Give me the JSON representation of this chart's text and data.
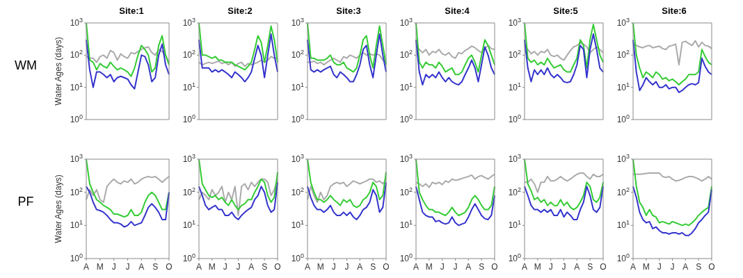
{
  "chart_data": [
    {
      "type": "line",
      "title": "Site:1",
      "ylabel": "Water Ages  (days)",
      "annotations": [
        "WM"
      ],
      "log": true,
      "tick_labels": "y",
      "ylim": [
        1,
        1000
      ],
      "categories": [
        null,
        null,
        null,
        null,
        null,
        null,
        null,
        null,
        null,
        null,
        null,
        null,
        null,
        null,
        null,
        null,
        null,
        null,
        null,
        null,
        null,
        null,
        null,
        null,
        null
      ],
      "yticks": [
        {
          "value": 1,
          "label": "10$^{0}$"
        },
        {
          "value": 10,
          "label": "10$^{1}$"
        },
        {
          "value": 100,
          "label": "10$^{2}$"
        },
        {
          "value": 1000,
          "label": "10$^{3}$"
        }
      ],
      "series": [
        {
          "color": "#aaaaaa",
          "values": [
            90,
            80,
            80,
            60,
            90,
            100,
            80,
            140,
            120,
            70,
            110,
            90,
            80,
            120,
            110,
            130,
            150,
            170,
            180,
            120,
            100,
            150,
            130,
            100,
            60
          ]
        },
        {
          "color": "#33cc33",
          "values": [
            1000,
            70,
            60,
            35,
            55,
            45,
            40,
            60,
            45,
            35,
            40,
            35,
            30,
            22,
            40,
            100,
            200,
            150,
            100,
            30,
            40,
            200,
            400,
            100,
            50
          ]
        },
        {
          "color": "#3333cc",
          "values": [
            300,
            35,
            10,
            30,
            30,
            25,
            20,
            25,
            15,
            20,
            22,
            20,
            18,
            12,
            9,
            30,
            100,
            90,
            50,
            15,
            20,
            100,
            220,
            50,
            25
          ]
        }
      ]
    },
    {
      "type": "line",
      "title": "Site:2",
      "log": true,
      "tick_labels": "y",
      "ylim": [
        1,
        1000
      ],
      "categories": [
        null,
        null,
        null,
        null,
        null,
        null,
        null,
        null,
        null,
        null,
        null,
        null,
        null,
        null,
        null,
        null,
        null,
        null,
        null,
        null,
        null,
        null,
        null,
        null,
        null
      ],
      "yticks": [
        {
          "value": 1,
          "label": "10$^{0}$"
        },
        {
          "value": 10,
          "label": "10$^{1}$"
        },
        {
          "value": 100,
          "label": "10$^{2}$"
        },
        {
          "value": 1000,
          "label": "10$^{3}$"
        }
      ],
      "series": [
        {
          "color": "#aaaaaa",
          "values": [
            60,
            50,
            55,
            60,
            55,
            60,
            65,
            55,
            60,
            50,
            60,
            45,
            55,
            60,
            45,
            55,
            50,
            55,
            60,
            70,
            60,
            70,
            90,
            80,
            80
          ]
        },
        {
          "color": "#33cc33",
          "values": [
            1000,
            100,
            100,
            90,
            80,
            90,
            70,
            70,
            60,
            60,
            60,
            50,
            45,
            40,
            35,
            45,
            60,
            150,
            400,
            250,
            60,
            200,
            800,
            300,
            60
          ]
        },
        {
          "color": "#3333cc",
          "values": [
            300,
            40,
            40,
            40,
            30,
            35,
            30,
            35,
            30,
            25,
            20,
            30,
            25,
            20,
            15,
            20,
            30,
            80,
            200,
            100,
            20,
            100,
            450,
            100,
            30
          ]
        }
      ]
    },
    {
      "type": "line",
      "title": "Site:3",
      "log": true,
      "tick_labels": "y",
      "ylim": [
        1,
        1000
      ],
      "categories": [
        null,
        null,
        null,
        null,
        null,
        null,
        null,
        null,
        null,
        null,
        null,
        null,
        null,
        null,
        null,
        null,
        null,
        null,
        null,
        null,
        null,
        null,
        null,
        null,
        null
      ],
      "yticks": [
        {
          "value": 1,
          "label": "10$^{0}$"
        },
        {
          "value": 10,
          "label": "10$^{1}$"
        },
        {
          "value": 100,
          "label": "10$^{2}$"
        },
        {
          "value": 1000,
          "label": "10$^{3}$"
        }
      ],
      "series": [
        {
          "color": "#aaaaaa",
          "values": [
            60,
            60,
            65,
            55,
            60,
            50,
            60,
            70,
            80,
            70,
            60,
            90,
            80,
            100,
            90,
            80,
            100,
            120,
            100,
            110,
            100,
            110,
            100,
            70,
            60
          ]
        },
        {
          "color": "#33cc33",
          "values": [
            1000,
            80,
            80,
            70,
            70,
            70,
            80,
            100,
            60,
            50,
            50,
            60,
            40,
            35,
            30,
            40,
            100,
            300,
            400,
            100,
            40,
            200,
            800,
            200,
            50
          ]
        },
        {
          "color": "#3333cc",
          "values": [
            300,
            35,
            30,
            35,
            30,
            35,
            40,
            45,
            25,
            20,
            30,
            25,
            20,
            15,
            15,
            25,
            50,
            150,
            200,
            50,
            20,
            100,
            450,
            100,
            30
          ]
        }
      ]
    },
    {
      "type": "line",
      "title": "Site:4",
      "log": true,
      "tick_labels": "y",
      "ylim": [
        1,
        1000
      ],
      "categories": [
        null,
        null,
        null,
        null,
        null,
        null,
        null,
        null,
        null,
        null,
        null,
        null,
        null,
        null,
        null,
        null,
        null,
        null,
        null,
        null,
        null,
        null,
        null,
        null,
        null
      ],
      "yticks": [
        {
          "value": 1,
          "label": "10$^{0}$"
        },
        {
          "value": 10,
          "label": "10$^{1}$"
        },
        {
          "value": 100,
          "label": "10$^{2}$"
        },
        {
          "value": 1000,
          "label": "10$^{3}$"
        }
      ],
      "series": [
        {
          "color": "#aaaaaa",
          "values": [
            200,
            150,
            120,
            150,
            100,
            130,
            120,
            150,
            110,
            100,
            120,
            90,
            80,
            120,
            110,
            140,
            160,
            190,
            170,
            140,
            120,
            160,
            200,
            160,
            150
          ]
        },
        {
          "color": "#33cc33",
          "values": [
            1000,
            60,
            40,
            60,
            50,
            50,
            40,
            60,
            45,
            30,
            35,
            40,
            25,
            25,
            30,
            50,
            80,
            100,
            60,
            30,
            100,
            300,
            200,
            100,
            50
          ]
        },
        {
          "color": "#3333cc",
          "values": [
            300,
            30,
            12,
            25,
            20,
            25,
            20,
            30,
            20,
            15,
            20,
            15,
            13,
            12,
            15,
            25,
            40,
            70,
            40,
            15,
            50,
            180,
            100,
            40,
            25
          ]
        }
      ]
    },
    {
      "type": "line",
      "title": "Site:5",
      "log": true,
      "tick_labels": "y",
      "ylim": [
        1,
        1000
      ],
      "categories": [
        null,
        null,
        null,
        null,
        null,
        null,
        null,
        null,
        null,
        null,
        null,
        null,
        null,
        null,
        null,
        null,
        null,
        null,
        null,
        null,
        null,
        null,
        null,
        null,
        null
      ],
      "yticks": [
        {
          "value": 1,
          "label": "10$^{0}$"
        },
        {
          "value": 10,
          "label": "10$^{1}$"
        },
        {
          "value": 100,
          "label": "10$^{2}$"
        },
        {
          "value": 1000,
          "label": "10$^{3}$"
        }
      ],
      "series": [
        {
          "color": "#aaaaaa",
          "values": [
            200,
            150,
            110,
            130,
            100,
            130,
            120,
            150,
            100,
            90,
            100,
            80,
            70,
            100,
            140,
            180,
            200,
            240,
            220,
            180,
            120,
            150,
            180,
            150,
            120
          ]
        },
        {
          "color": "#33cc33",
          "values": [
            1000,
            80,
            60,
            70,
            50,
            60,
            50,
            80,
            55,
            40,
            45,
            50,
            35,
            30,
            30,
            50,
            80,
            300,
            200,
            40,
            300,
            900,
            300,
            100,
            60
          ]
        },
        {
          "color": "#3333cc",
          "values": [
            300,
            40,
            15,
            35,
            25,
            35,
            25,
            40,
            25,
            20,
            25,
            20,
            15,
            14,
            15,
            25,
            50,
            200,
            150,
            20,
            150,
            450,
            150,
            40,
            30
          ]
        }
      ]
    },
    {
      "type": "line",
      "title": "Site:6",
      "log": true,
      "tick_labels": "y",
      "ylim": [
        1,
        1000
      ],
      "categories": [
        null,
        null,
        null,
        null,
        null,
        null,
        null,
        null,
        null,
        null,
        null,
        null,
        null,
        null,
        null,
        null,
        null,
        null,
        null,
        null,
        null,
        null,
        null,
        null,
        null
      ],
      "yticks": [
        {
          "value": 1,
          "label": "10$^{0}$"
        },
        {
          "value": 10,
          "label": "10$^{1}$"
        },
        {
          "value": 100,
          "label": "10$^{2}$"
        },
        {
          "value": 1000,
          "label": "10$^{3}$"
        }
      ],
      "series": [
        {
          "color": "#aaaaaa",
          "values": [
            220,
            200,
            180,
            170,
            190,
            200,
            170,
            180,
            190,
            160,
            150,
            190,
            200,
            220,
            50,
            250,
            270,
            230,
            200,
            280,
            180,
            250,
            200,
            190,
            160
          ]
        },
        {
          "color": "#33cc33",
          "values": [
            1000,
            100,
            40,
            20,
            30,
            25,
            20,
            30,
            25,
            18,
            20,
            16,
            18,
            15,
            12,
            15,
            18,
            25,
            25,
            25,
            30,
            150,
            90,
            60,
            50
          ]
        },
        {
          "color": "#3333cc",
          "values": [
            300,
            30,
            8,
            12,
            20,
            15,
            12,
            15,
            10,
            10,
            12,
            9,
            10,
            10,
            7,
            8,
            10,
            12,
            13,
            12,
            14,
            80,
            45,
            30,
            25
          ]
        }
      ]
    },
    {
      "type": "line",
      "ylabel": "Water Ages  (days)",
      "annotations": [
        "PF"
      ],
      "log": true,
      "ylim": [
        1,
        1000
      ],
      "categories": [
        "A",
        null,
        null,
        null,
        "M",
        null,
        null,
        null,
        "J",
        null,
        null,
        null,
        "J",
        null,
        null,
        null,
        "A",
        null,
        null,
        null,
        "S",
        null,
        null,
        null,
        "O"
      ],
      "yticks": [
        {
          "value": 1,
          "label": "10$^{0}$"
        },
        {
          "value": 10,
          "label": "10$^{1}$"
        },
        {
          "value": 100,
          "label": "10$^{2}$"
        },
        {
          "value": 1000,
          "label": "10$^{3}$"
        }
      ],
      "series": [
        {
          "color": "#aaaaaa",
          "values": [
            60,
            120,
            80,
            120,
            60,
            50,
            150,
            200,
            250,
            200,
            180,
            220,
            200,
            250,
            180,
            200,
            250,
            280,
            300,
            280,
            300,
            250,
            200,
            250,
            300
          ]
        },
        {
          "color": "#33cc33",
          "values": [
            1000,
            180,
            100,
            60,
            50,
            40,
            35,
            30,
            22,
            22,
            20,
            18,
            20,
            30,
            20,
            20,
            25,
            50,
            80,
            100,
            80,
            50,
            30,
            30,
            100
          ]
        },
        {
          "color": "#3333cc",
          "values": [
            150,
            100,
            50,
            30,
            28,
            25,
            20,
            15,
            12,
            12,
            11,
            9,
            10,
            13,
            10,
            11,
            12,
            20,
            35,
            45,
            35,
            25,
            15,
            15,
            100
          ]
        }
      ]
    },
    {
      "type": "line",
      "log": true,
      "ylim": [
        1,
        1000
      ],
      "categories": [
        "A",
        null,
        null,
        null,
        "M",
        null,
        null,
        null,
        "J",
        null,
        null,
        null,
        "J",
        null,
        null,
        null,
        "A",
        null,
        null,
        null,
        "S",
        null,
        null,
        null,
        "O"
      ],
      "yticks": [
        {
          "value": 1,
          "label": "10$^{0}$"
        },
        {
          "value": 10,
          "label": "10$^{1}$"
        },
        {
          "value": 100,
          "label": "10$^{2}$"
        },
        {
          "value": 1000,
          "label": "10$^{3}$"
        }
      ],
      "series": [
        {
          "color": "#aaaaaa",
          "values": [
            60,
            100,
            80,
            60,
            120,
            80,
            100,
            150,
            50,
            100,
            60,
            150,
            20,
            150,
            180,
            120,
            200,
            150,
            200,
            250,
            250,
            200,
            80,
            120,
            250
          ]
        },
        {
          "color": "#33cc33",
          "values": [
            1000,
            180,
            120,
            80,
            70,
            80,
            60,
            70,
            50,
            40,
            60,
            40,
            30,
            40,
            45,
            60,
            60,
            100,
            150,
            250,
            200,
            80,
            50,
            70,
            400
          ]
        },
        {
          "color": "#3333cc",
          "values": [
            150,
            80,
            40,
            30,
            35,
            40,
            30,
            30,
            20,
            20,
            25,
            18,
            15,
            20,
            25,
            30,
            35,
            60,
            80,
            150,
            100,
            40,
            25,
            30,
            200
          ]
        }
      ]
    },
    {
      "type": "line",
      "log": true,
      "ylim": [
        1,
        1000
      ],
      "categories": [
        "A",
        null,
        null,
        null,
        "M",
        null,
        null,
        null,
        "J",
        null,
        null,
        null,
        "J",
        null,
        null,
        null,
        "A",
        null,
        null,
        null,
        "S",
        null,
        null,
        null,
        "O"
      ],
      "yticks": [
        {
          "value": 1,
          "label": "10$^{0}$"
        },
        {
          "value": 10,
          "label": "10$^{1}$"
        },
        {
          "value": 100,
          "label": "10$^{2}$"
        },
        {
          "value": 1000,
          "label": "10$^{3}$"
        }
      ],
      "series": [
        {
          "color": "#aaaaaa",
          "values": [
            60,
            150,
            80,
            50,
            100,
            60,
            80,
            150,
            180,
            200,
            180,
            200,
            150,
            180,
            220,
            200,
            180,
            200,
            220,
            250,
            250,
            200,
            220,
            180,
            250
          ]
        },
        {
          "color": "#33cc33",
          "values": [
            1000,
            200,
            100,
            60,
            60,
            50,
            60,
            80,
            60,
            50,
            40,
            60,
            50,
            60,
            40,
            35,
            40,
            60,
            70,
            100,
            200,
            150,
            60,
            80,
            400
          ]
        },
        {
          "color": "#3333cc",
          "values": [
            150,
            70,
            40,
            30,
            30,
            25,
            30,
            40,
            25,
            20,
            20,
            25,
            20,
            25,
            18,
            15,
            20,
            30,
            35,
            50,
            120,
            80,
            25,
            35,
            200
          ]
        }
      ]
    },
    {
      "type": "line",
      "log": true,
      "ylim": [
        1,
        1000
      ],
      "categories": [
        "A",
        null,
        null,
        null,
        "M",
        null,
        null,
        null,
        "J",
        null,
        null,
        null,
        "J",
        null,
        null,
        null,
        "A",
        null,
        null,
        null,
        "S",
        null,
        null,
        null,
        "O"
      ],
      "yticks": [
        {
          "value": 1,
          "label": "10$^{0}$"
        },
        {
          "value": 10,
          "label": "10$^{1}$"
        },
        {
          "value": 100,
          "label": "10$^{2}$"
        },
        {
          "value": 1000,
          "label": "10$^{3}$"
        }
      ],
      "series": [
        {
          "color": "#aaaaaa",
          "values": [
            200,
            180,
            150,
            180,
            140,
            200,
            180,
            200,
            170,
            220,
            200,
            250,
            230,
            240,
            260,
            280,
            300,
            330,
            250,
            300,
            320,
            280,
            250,
            300,
            350
          ]
        },
        {
          "color": "#33cc33",
          "values": [
            1000,
            100,
            60,
            40,
            30,
            30,
            25,
            25,
            22,
            20,
            25,
            35,
            25,
            20,
            22,
            25,
            35,
            60,
            80,
            60,
            40,
            30,
            30,
            40,
            150
          ]
        },
        {
          "color": "#3333cc",
          "values": [
            150,
            60,
            25,
            20,
            18,
            18,
            13,
            14,
            12,
            11,
            12,
            18,
            12,
            10,
            11,
            12,
            18,
            30,
            45,
            30,
            20,
            16,
            15,
            20,
            80
          ]
        }
      ]
    },
    {
      "type": "line",
      "log": true,
      "ylim": [
        1,
        1000
      ],
      "categories": [
        "A",
        null,
        null,
        null,
        "M",
        null,
        null,
        null,
        "J",
        null,
        null,
        null,
        "J",
        null,
        null,
        null,
        "A",
        null,
        null,
        null,
        "S",
        null,
        null,
        null,
        "O"
      ],
      "yticks": [
        {
          "value": 1,
          "label": "10$^{0}$"
        },
        {
          "value": 10,
          "label": "10$^{1}$"
        },
        {
          "value": 100,
          "label": "10$^{2}$"
        },
        {
          "value": 1000,
          "label": "10$^{3}$"
        }
      ],
      "series": [
        {
          "color": "#aaaaaa",
          "values": [
            200,
            200,
            250,
            180,
            100,
            200,
            200,
            300,
            220,
            220,
            250,
            300,
            250,
            220,
            250,
            300,
            350,
            380,
            380,
            300,
            250,
            350,
            300,
            300,
            350
          ]
        },
        {
          "color": "#33cc33",
          "values": [
            1000,
            180,
            110,
            60,
            70,
            50,
            60,
            40,
            50,
            40,
            40,
            60,
            40,
            50,
            35,
            30,
            35,
            50,
            80,
            200,
            150,
            60,
            50,
            70,
            200
          ]
        },
        {
          "color": "#3333cc",
          "values": [
            150,
            80,
            40,
            30,
            30,
            25,
            30,
            25,
            30,
            20,
            20,
            30,
            18,
            25,
            20,
            15,
            15,
            30,
            50,
            150,
            80,
            30,
            25,
            35,
            150
          ]
        }
      ]
    },
    {
      "type": "line",
      "log": true,
      "ylim": [
        1,
        1000
      ],
      "categories": [
        "A",
        null,
        null,
        null,
        "M",
        null,
        null,
        null,
        "J",
        null,
        null,
        null,
        "J",
        null,
        null,
        null,
        "A",
        null,
        null,
        null,
        "S",
        null,
        null,
        null,
        "O"
      ],
      "yticks": [
        {
          "value": 1,
          "label": "10$^{0}$"
        },
        {
          "value": 10,
          "label": "10$^{1}$"
        },
        {
          "value": 100,
          "label": "10$^{2}$"
        },
        {
          "value": 1000,
          "label": "10$^{3}$"
        }
      ],
      "series": [
        {
          "color": "#aaaaaa",
          "values": [
            350,
            350,
            350,
            360,
            370,
            380,
            380,
            380,
            380,
            300,
            280,
            300,
            250,
            220,
            230,
            250,
            280,
            300,
            300,
            280,
            250,
            220,
            250,
            300,
            250
          ]
        },
        {
          "color": "#33cc33",
          "values": [
            1000,
            150,
            50,
            35,
            20,
            30,
            20,
            18,
            12,
            13,
            12,
            11,
            13,
            12,
            11,
            10,
            11,
            10,
            12,
            15,
            20,
            25,
            30,
            35,
            150
          ]
        },
        {
          "color": "#3333cc",
          "values": [
            150,
            70,
            25,
            15,
            12,
            13,
            8,
            9,
            7,
            6,
            6,
            5.5,
            6,
            6,
            5.5,
            6,
            5,
            5,
            6,
            8,
            12,
            15,
            20,
            25,
            120
          ]
        }
      ]
    }
  ]
}
